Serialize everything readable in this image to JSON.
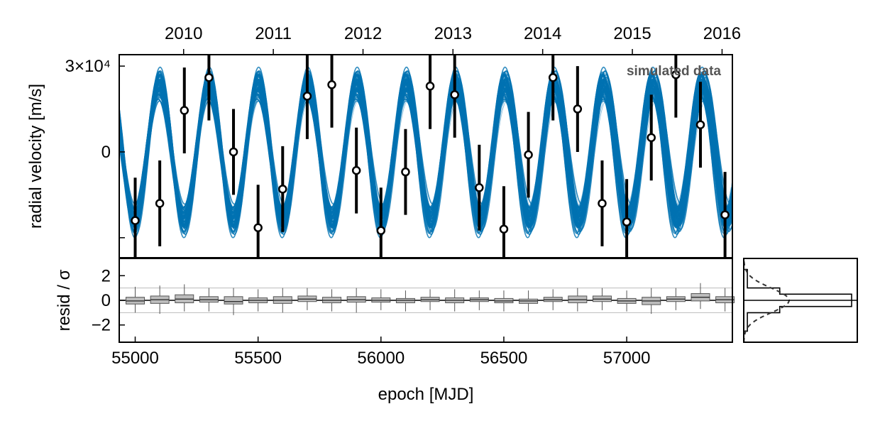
{
  "chart_data": [
    {
      "panel": "radial-velocity",
      "type": "scatter",
      "title": "",
      "xlabel": "",
      "ylabel": "radial velocity [m/s]",
      "annotation": "simulated data",
      "xlim": [
        54935,
        57430
      ],
      "ylim": [
        -37000,
        34000
      ],
      "yticks": [
        {
          "value": 0,
          "label": "0"
        },
        {
          "value": 30000,
          "label": "3×10⁴"
        },
        {
          "value": -30000,
          "label": ""
        }
      ],
      "top_axis": {
        "ticks": [
          {
            "mjd": 55197,
            "label": "2010"
          },
          {
            "mjd": 55562,
            "label": "2011"
          },
          {
            "mjd": 55927,
            "label": "2012"
          },
          {
            "mjd": 56293,
            "label": "2013"
          },
          {
            "mjd": 56658,
            "label": "2014"
          },
          {
            "mjd": 57023,
            "label": "2015"
          },
          {
            "mjd": 57388,
            "label": "2016"
          }
        ]
      },
      "model": {
        "kind": "posterior sinusoid draws",
        "color": "#0072b2",
        "period_days": 201,
        "mean_amplitude": 23000,
        "phase_reference_mjd": 55300
      },
      "points": [
        {
          "x": 55000,
          "y": -24000,
          "err": 15000
        },
        {
          "x": 55100,
          "y": -18000,
          "err": 15000
        },
        {
          "x": 55200,
          "y": 14500,
          "err": 15000
        },
        {
          "x": 55300,
          "y": 26000,
          "err": 15000
        },
        {
          "x": 55400,
          "y": 0,
          "err": 15000
        },
        {
          "x": 55500,
          "y": -26500,
          "err": 15000
        },
        {
          "x": 55600,
          "y": -13000,
          "err": 15000
        },
        {
          "x": 55700,
          "y": 19500,
          "err": 15000
        },
        {
          "x": 55800,
          "y": 23500,
          "err": 15000
        },
        {
          "x": 55900,
          "y": -6500,
          "err": 15000
        },
        {
          "x": 56000,
          "y": -27500,
          "err": 15000
        },
        {
          "x": 56100,
          "y": -7000,
          "err": 15000
        },
        {
          "x": 56200,
          "y": 23000,
          "err": 15000
        },
        {
          "x": 56300,
          "y": 20000,
          "err": 15000
        },
        {
          "x": 56400,
          "y": -12500,
          "err": 15000
        },
        {
          "x": 56500,
          "y": -27000,
          "err": 15000
        },
        {
          "x": 56600,
          "y": -1000,
          "err": 15000
        },
        {
          "x": 56700,
          "y": 26000,
          "err": 15000
        },
        {
          "x": 56800,
          "y": 15000,
          "err": 15000
        },
        {
          "x": 56900,
          "y": -18000,
          "err": 15000
        },
        {
          "x": 57000,
          "y": -24500,
          "err": 15000
        },
        {
          "x": 57100,
          "y": 5000,
          "err": 15000
        },
        {
          "x": 57200,
          "y": 27000,
          "err": 15000
        },
        {
          "x": 57300,
          "y": 9500,
          "err": 15000
        },
        {
          "x": 57400,
          "y": -22000,
          "err": 15000
        }
      ]
    },
    {
      "panel": "residuals",
      "type": "box",
      "xlabel": "epoch [MJD]",
      "ylabel": "resid / σ",
      "xlim": [
        54935,
        57430
      ],
      "ylim": [
        -3.4,
        3.4
      ],
      "yticks": [
        2,
        0,
        -2
      ],
      "ytick_labels": [
        "2",
        "0",
        "−2"
      ],
      "xticks": [
        55000,
        55500,
        56000,
        56500,
        57000
      ],
      "xtick_labels": [
        "55000",
        "55500",
        "56000",
        "56500",
        "57000"
      ],
      "reference_lines": [
        1,
        -1
      ],
      "boxes": [
        {
          "x": 55000,
          "q1": -0.3,
          "median": -0.05,
          "q3": 0.25,
          "lo": -1.0,
          "hi": 1.1
        },
        {
          "x": 55100,
          "q1": -0.25,
          "median": 0.05,
          "q3": 0.35,
          "lo": -1.1,
          "hi": 1.2
        },
        {
          "x": 55200,
          "q1": -0.2,
          "median": 0.1,
          "q3": 0.45,
          "lo": -0.9,
          "hi": 1.3
        },
        {
          "x": 55300,
          "q1": -0.15,
          "median": 0.05,
          "q3": 0.3,
          "lo": -0.9,
          "hi": 1.0
        },
        {
          "x": 55400,
          "q1": -0.3,
          "median": -0.1,
          "q3": 0.3,
          "lo": -1.2,
          "hi": 1.0
        },
        {
          "x": 55500,
          "q1": -0.2,
          "median": 0.0,
          "q3": 0.2,
          "lo": -0.9,
          "hi": 0.9
        },
        {
          "x": 55600,
          "q1": -0.25,
          "median": 0.0,
          "q3": 0.3,
          "lo": -1.0,
          "hi": 1.0
        },
        {
          "x": 55700,
          "q1": -0.1,
          "median": 0.1,
          "q3": 0.35,
          "lo": -0.8,
          "hi": 1.0
        },
        {
          "x": 55800,
          "q1": -0.2,
          "median": 0.0,
          "q3": 0.25,
          "lo": -0.9,
          "hi": 0.9
        },
        {
          "x": 55900,
          "q1": -0.15,
          "median": 0.05,
          "q3": 0.3,
          "lo": -1.0,
          "hi": 1.0
        },
        {
          "x": 56000,
          "q1": -0.15,
          "median": 0.0,
          "q3": 0.2,
          "lo": -0.8,
          "hi": 0.9
        },
        {
          "x": 56100,
          "q1": -0.2,
          "median": 0.0,
          "q3": 0.15,
          "lo": -0.9,
          "hi": 0.8
        },
        {
          "x": 56200,
          "q1": -0.1,
          "median": 0.05,
          "q3": 0.25,
          "lo": -0.8,
          "hi": 0.9
        },
        {
          "x": 56300,
          "q1": -0.2,
          "median": 0.0,
          "q3": 0.2,
          "lo": -0.9,
          "hi": 0.9
        },
        {
          "x": 56400,
          "q1": -0.1,
          "median": 0.05,
          "q3": 0.2,
          "lo": -0.8,
          "hi": 0.8
        },
        {
          "x": 56500,
          "q1": -0.2,
          "median": -0.05,
          "q3": 0.15,
          "lo": -0.9,
          "hi": 0.8
        },
        {
          "x": 56600,
          "q1": -0.25,
          "median": -0.05,
          "q3": 0.1,
          "lo": -0.9,
          "hi": 0.8
        },
        {
          "x": 56700,
          "q1": -0.1,
          "median": 0.05,
          "q3": 0.25,
          "lo": -0.8,
          "hi": 0.9
        },
        {
          "x": 56800,
          "q1": -0.2,
          "median": 0.05,
          "q3": 0.35,
          "lo": -0.9,
          "hi": 1.0
        },
        {
          "x": 56900,
          "q1": -0.1,
          "median": 0.1,
          "q3": 0.35,
          "lo": -0.8,
          "hi": 1.0
        },
        {
          "x": 57000,
          "q1": -0.25,
          "median": -0.05,
          "q3": 0.15,
          "lo": -0.9,
          "hi": 0.8
        },
        {
          "x": 57100,
          "q1": -0.35,
          "median": -0.05,
          "q3": 0.25,
          "lo": -1.1,
          "hi": 1.0
        },
        {
          "x": 57200,
          "q1": -0.1,
          "median": 0.1,
          "q3": 0.3,
          "lo": -0.8,
          "hi": 1.0
        },
        {
          "x": 57300,
          "q1": -0.05,
          "median": 0.25,
          "q3": 0.55,
          "lo": -0.7,
          "hi": 1.4
        },
        {
          "x": 57400,
          "q1": -0.2,
          "median": 0.05,
          "q3": 0.3,
          "lo": -0.9,
          "hi": 1.0
        }
      ]
    },
    {
      "panel": "residual-histogram",
      "type": "histogram",
      "orientation": "horizontal",
      "bin_edges": [
        -3.0,
        -2.5,
        -2.0,
        -1.5,
        -1.0,
        -0.5,
        0.0,
        0.5,
        1.0,
        1.5,
        2.0,
        2.5,
        3.0
      ],
      "counts": [
        0,
        1,
        1,
        1,
        10,
        30,
        30,
        10,
        1,
        1,
        1,
        0
      ],
      "reference": {
        "kind": "standard normal",
        "line_style": "dashed",
        "color": "#333333"
      }
    }
  ]
}
